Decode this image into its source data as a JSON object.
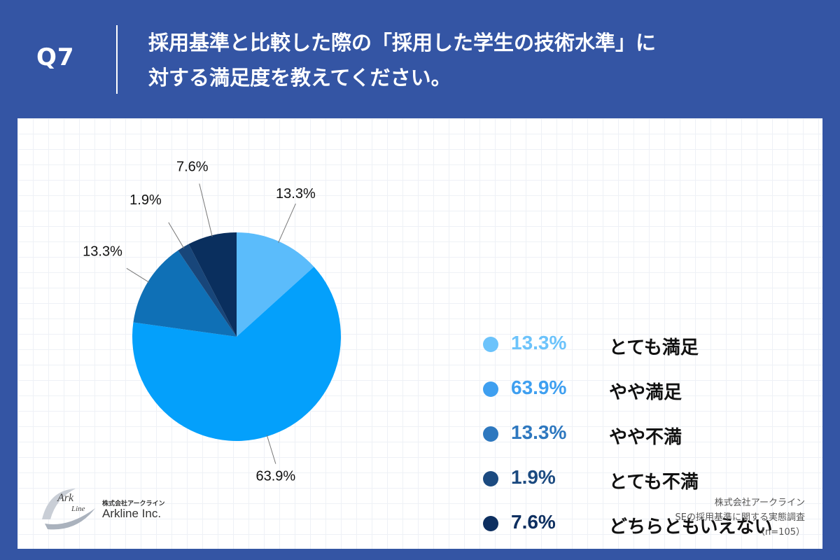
{
  "header": {
    "q_label": "Q7",
    "question_line1": "採用基準と比較した際の「採用した学生の技術水準」に",
    "question_line2": "対する満足度を教えてください。"
  },
  "chart_data": {
    "type": "pie",
    "slices": [
      {
        "label": "とても満足",
        "value": 13.3,
        "value_label": "13.3%",
        "color": "#5bbcfb",
        "legend_color": "#6cc3fb"
      },
      {
        "label": "やや満足",
        "value": 63.9,
        "value_label": "63.9%",
        "color": "#04a0fb",
        "legend_color": "#3e9ff0"
      },
      {
        "label": "やや不満",
        "value": 13.3,
        "value_label": "13.3%",
        "color": "#0f70b6",
        "legend_color": "#2e78bf"
      },
      {
        "label": "とても不満",
        "value": 1.9,
        "value_label": "1.9%",
        "color": "#18467a",
        "legend_color": "#1b4a80"
      },
      {
        "label": "どちらともいえない",
        "value": 7.6,
        "value_label": "7.6%",
        "color": "#0a2f5e",
        "legend_color": "#0d2f60"
      }
    ],
    "start_angle": "12 o'clock",
    "direction": "clockwise",
    "legend_position": "right"
  },
  "logo": {
    "mark_text": "Ark Line",
    "jp": "株式会社アークライン",
    "en": "Arkline Inc."
  },
  "source": {
    "line1": "株式会社アークライン",
    "line2": "SEの採用基準に関する実態調査",
    "line3": "（n=105）"
  }
}
